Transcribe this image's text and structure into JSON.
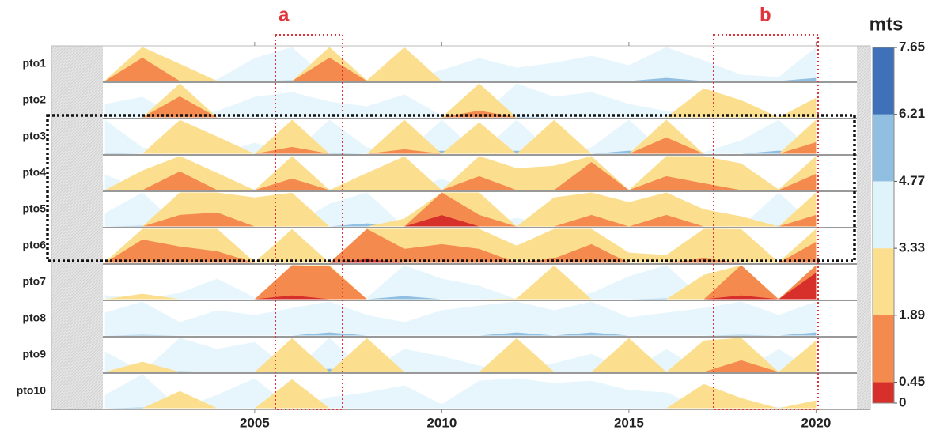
{
  "chart_data": {
    "type": "horizon",
    "x": [
      2001,
      2002,
      2003,
      2004,
      2005,
      2006,
      2007,
      2008,
      2009,
      2010,
      2011,
      2012,
      2013,
      2014,
      2015,
      2016,
      2017,
      2018,
      2019,
      2020
    ],
    "series": [
      {
        "name": "pto1",
        "values": [
          3.3,
          0.9,
          2.6,
          3.4,
          4.3,
          4.8,
          0.9,
          3.3,
          1.9,
          3.8,
          4.3,
          3.9,
          4.1,
          4.4,
          4.0,
          4.9,
          4.2,
          3.6,
          3.5,
          4.9
        ]
      },
      {
        "name": "pto2",
        "values": [
          3.9,
          4.2,
          1.0,
          3.6,
          4.2,
          4.4,
          4.0,
          3.8,
          4.3,
          3.4,
          1.6,
          4.8,
          4.2,
          4.4,
          3.9,
          3.6,
          2.1,
          2.6,
          3.4,
          2.5
        ]
      },
      {
        "name": "pto3",
        "values": [
          4.8,
          3.6,
          1.9,
          2.6,
          3.8,
          1.6,
          4.8,
          3.6,
          1.7,
          4.9,
          2.0,
          4.9,
          1.9,
          3.6,
          4.9,
          1.2,
          3.4,
          3.9,
          4.9,
          1.4
        ]
      },
      {
        "name": "pto4",
        "values": [
          4.0,
          2.5,
          1.1,
          2.6,
          3.4,
          1.4,
          3.4,
          2.6,
          1.9,
          3.8,
          1.3,
          2.4,
          2.3,
          0.7,
          3.4,
          1.3,
          1.6,
          2.2,
          3.3,
          1.2
        ]
      },
      {
        "name": "pto5",
        "values": [
          3.9,
          4.8,
          1.4,
          1.3,
          2.1,
          1.9,
          4.3,
          4.9,
          3.0,
          0.3,
          1.4,
          3.7,
          2.1,
          1.4,
          2.3,
          1.4,
          2.6,
          2.9,
          4.8,
          1.4
        ]
      },
      {
        "name": "pto6",
        "values": [
          3.3,
          0.9,
          1.2,
          1.4,
          3.3,
          1.9,
          3.4,
          0.4,
          1.3,
          1.1,
          1.3,
          2.6,
          1.7,
          1.1,
          2.9,
          3.0,
          1.7,
          1.9,
          3.3,
          1.0
        ]
      },
      {
        "name": "pto7",
        "values": [
          3.5,
          3.1,
          3.6,
          4.2,
          3.4,
          0.4,
          0.5,
          3.4,
          4.9,
          4.2,
          3.9,
          3.3,
          1.9,
          3.6,
          4.3,
          4.8,
          2.3,
          0.4,
          3.4,
          0.1
        ]
      },
      {
        "name": "pto8",
        "values": [
          4.3,
          4.8,
          3.9,
          4.4,
          4.2,
          4.5,
          4.9,
          4.2,
          3.9,
          4.4,
          4.6,
          4.9,
          4.4,
          4.9,
          4.1,
          4.3,
          4.5,
          4.8,
          4.2,
          4.9
        ]
      },
      {
        "name": "pto9",
        "values": [
          4.2,
          2.9,
          4.8,
          4.3,
          4.6,
          1.9,
          4.9,
          1.9,
          4.3,
          4.0,
          3.6,
          1.9,
          3.7,
          4.1,
          1.9,
          4.3,
          2.0,
          1.4,
          4.3,
          2.0
        ]
      },
      {
        "name": "pto10",
        "values": [
          3.9,
          4.8,
          2.6,
          3.9,
          4.6,
          2.1,
          3.8,
          4.0,
          4.3,
          3.5,
          4.5,
          4.6,
          4.4,
          4.5,
          4.1,
          4.0,
          2.3,
          2.9,
          3.4,
          3.0
        ]
      }
    ],
    "xlim": [
      1999.57,
      2021.45
    ],
    "xticks": [
      2005,
      2010,
      2015,
      2020
    ],
    "color_scale": {
      "title": "mts",
      "bounds": [
        0,
        0.45,
        1.89,
        3.33,
        4.77,
        6.21,
        7.65
      ],
      "colors": [
        "#d7302a",
        "#f58a4f",
        "#fbdf8f",
        "#dff3fb",
        "#90bfe1",
        "#3e71b7"
      ]
    },
    "annotations": [
      "a",
      "b"
    ]
  }
}
